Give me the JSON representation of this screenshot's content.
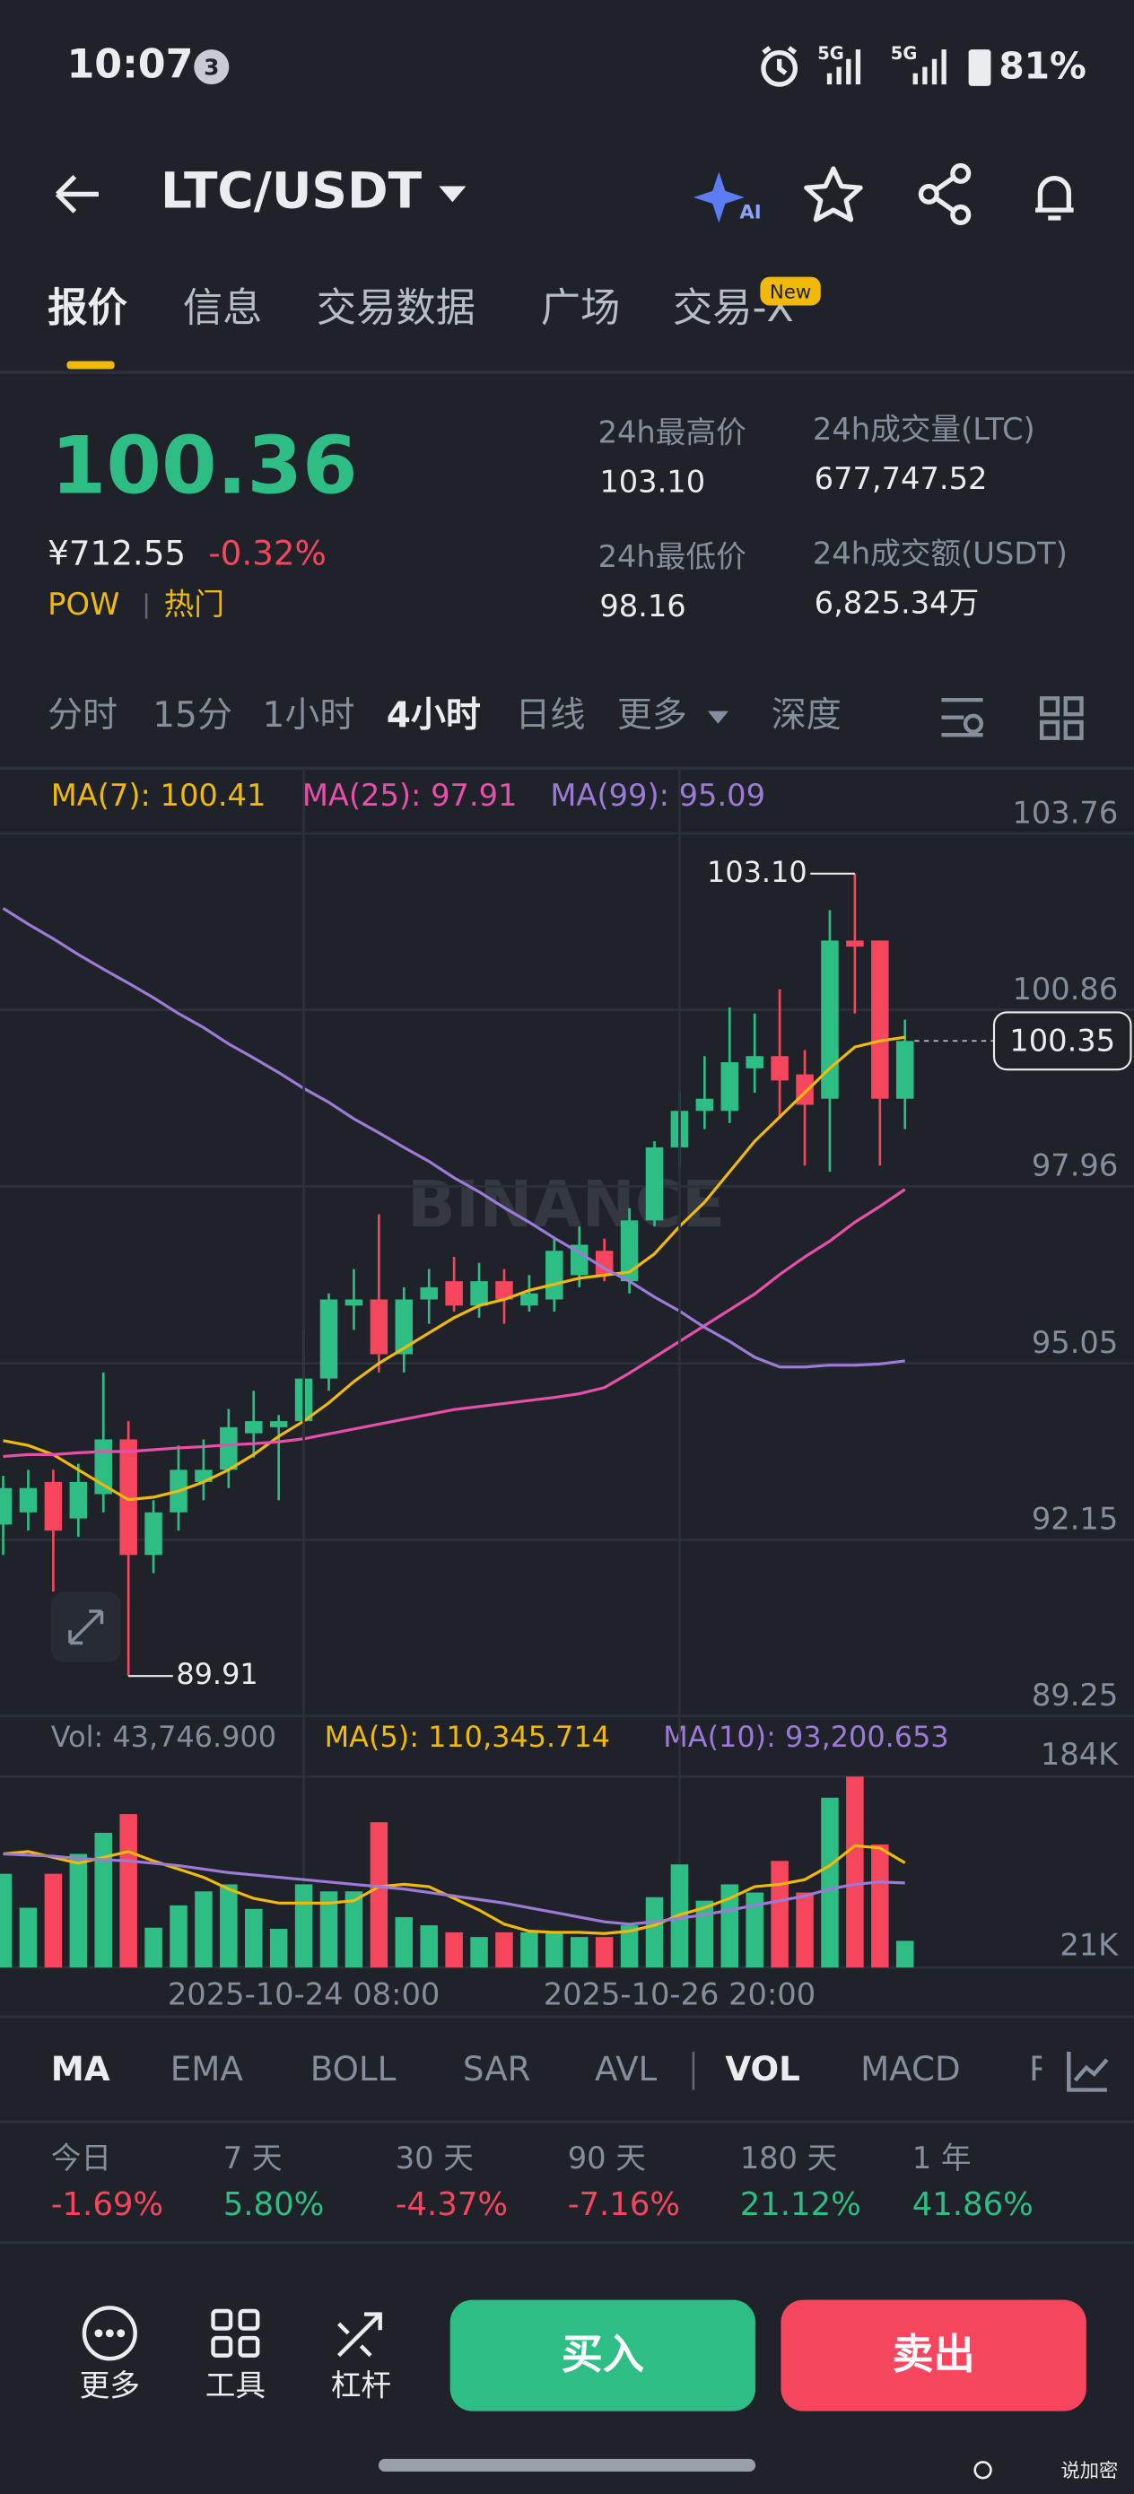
{
  "status_bar": {
    "time": "10:07",
    "notifications": "3",
    "network_1": "5G",
    "network_2": "5G",
    "battery": "81%"
  },
  "header": {
    "pair": "LTC/USDT",
    "ai_badge": "AI"
  },
  "tabs": [
    "报价",
    "信息",
    "交易数据",
    "广场",
    "交易-X"
  ],
  "new_badge": "New",
  "ticker": {
    "price": "100.36",
    "cny_price": "¥712.55",
    "change": "-0.32%",
    "tags": [
      "POW",
      "热门"
    ],
    "stats": [
      {
        "label": "24h最高价",
        "value": "103.10"
      },
      {
        "label": "24h成交量(LTC)",
        "value": "677,747.52"
      },
      {
        "label": "24h最低价",
        "value": "98.16"
      },
      {
        "label": "24h成交额(USDT)",
        "value": "6,825.34万"
      }
    ]
  },
  "intervals": [
    "分时",
    "15分",
    "1小时",
    "4小时",
    "日线",
    "更多",
    "深度"
  ],
  "watermark": "BINANCE",
  "chart_data": [
    {
      "type": "candlestick",
      "up_color": "#2ebd85",
      "down_color": "#f6465d",
      "open": [
        92.4,
        92.6,
        93.1,
        92.5,
        92.9,
        93.8,
        91.9,
        92.6,
        93.1,
        93.3,
        93.9,
        94.0,
        94.1,
        94.8,
        96.0,
        96.1,
        95.2,
        96.1,
        96.4,
        96.0,
        96.4,
        96.0,
        96.1,
        96.5,
        96.9,
        96.4,
        97.4,
        98.6,
        99.2,
        99.2,
        99.9,
        100.1,
        99.8,
        99.4,
        102.0,
        102.0,
        99.4
      ],
      "high": [
        93.2,
        93.3,
        93.3,
        93.4,
        94.9,
        94.1,
        92.8,
        93.7,
        93.8,
        94.3,
        94.6,
        94.2,
        95.6,
        96.2,
        96.6,
        97.5,
        96.3,
        96.6,
        96.8,
        96.7,
        96.6,
        96.5,
        97.1,
        97.3,
        97.1,
        97.6,
        98.7,
        99.5,
        100.1,
        100.9,
        100.8,
        101.2,
        100.2,
        102.5,
        103.1,
        102.0,
        100.7
      ],
      "low": [
        91.9,
        92.3,
        91.3,
        92.2,
        92.6,
        89.91,
        91.6,
        92.3,
        92.8,
        93.0,
        93.5,
        92.8,
        93.8,
        94.6,
        95.6,
        94.9,
        94.9,
        95.7,
        95.9,
        95.8,
        95.7,
        95.9,
        95.9,
        96.3,
        96.4,
        96.2,
        97.3,
        98.3,
        98.9,
        99.0,
        99.5,
        99.1,
        98.3,
        98.2,
        100.8,
        98.3,
        98.9
      ],
      "close": [
        93.0,
        93.0,
        92.3,
        93.1,
        93.8,
        91.9,
        92.6,
        93.3,
        93.3,
        94.0,
        94.1,
        94.1,
        94.8,
        96.1,
        96.1,
        95.2,
        96.1,
        96.3,
        96.0,
        96.4,
        96.1,
        96.2,
        96.9,
        97.0,
        96.5,
        97.4,
        98.6,
        99.2,
        99.4,
        100.0,
        100.1,
        99.7,
        99.3,
        102.0,
        101.9,
        99.4,
        100.35
      ],
      "series": [
        {
          "label": "MA(7): 100.41",
          "color": "#f0b90b",
          "values": [
            93.78,
            93.7,
            93.55,
            93.3,
            93.05,
            92.81,
            92.85,
            92.95,
            93.1,
            93.3,
            93.55,
            93.85,
            94.1,
            94.4,
            94.75,
            95.05,
            95.3,
            95.55,
            95.8,
            96.0,
            96.1,
            96.25,
            96.35,
            96.45,
            96.5,
            96.55,
            96.85,
            97.3,
            97.7,
            98.2,
            98.7,
            99.1,
            99.5,
            99.9,
            100.25,
            100.35,
            100.41
          ]
        },
        {
          "label": "MA(25): 97.91",
          "color": "#e84fab",
          "values": [
            93.52,
            93.55,
            93.55,
            93.58,
            93.6,
            93.6,
            93.63,
            93.66,
            93.68,
            93.71,
            93.73,
            93.76,
            93.81,
            93.89,
            93.97,
            94.05,
            94.13,
            94.21,
            94.29,
            94.34,
            94.39,
            94.44,
            94.49,
            94.55,
            94.65,
            94.89,
            95.15,
            95.41,
            95.67,
            95.93,
            96.19,
            96.51,
            96.8,
            97.06,
            97.37,
            97.63,
            97.91
          ]
        },
        {
          "label": "MA(99): 95.09",
          "color": "#9e7ad8",
          "values": [
            102.53,
            102.27,
            102.03,
            101.77,
            101.53,
            101.3,
            101.06,
            100.8,
            100.57,
            100.3,
            100.07,
            99.83,
            99.57,
            99.34,
            99.07,
            98.84,
            98.6,
            98.37,
            98.1,
            97.87,
            97.61,
            97.37,
            97.11,
            96.87,
            96.61,
            96.4,
            96.14,
            95.91,
            95.64,
            95.41,
            95.15,
            94.99,
            94.99,
            95.02,
            95.02,
            95.04,
            95.09
          ]
        }
      ],
      "annotations": [
        {
          "value": 103.1,
          "label": "103.10"
        },
        {
          "value": 89.91,
          "label": "89.91"
        }
      ],
      "last_price": {
        "value": 100.35,
        "label": "100.35"
      },
      "ylim": [
        89.25,
        103.76
      ],
      "yticks": [
        103.76,
        100.86,
        97.96,
        95.05,
        92.15,
        89.25
      ],
      "grid": true
    },
    {
      "type": "bar",
      "legend": [
        "Vol: 43,746.900",
        "MA(5): 110,345.714",
        "MA(10): 93,200.653"
      ],
      "categories": [
        null,
        null,
        null,
        null,
        null,
        null,
        null,
        null,
        null,
        null,
        null,
        null,
        "2025-10-24 08:00",
        null,
        null,
        null,
        null,
        null,
        null,
        null,
        null,
        null,
        null,
        null,
        null,
        null,
        null,
        "2025-10-26 20:00",
        null,
        null,
        null,
        null,
        null,
        null,
        null,
        null,
        null
      ],
      "values": [
        101000,
        72000,
        101000,
        118000,
        136000,
        152000,
        55000,
        74000,
        86000,
        92000,
        71000,
        54000,
        92000,
        86000,
        86000,
        145000,
        64000,
        57000,
        51000,
        47000,
        51000,
        51000,
        51000,
        47000,
        47000,
        57000,
        81000,
        109000,
        78000,
        92000,
        85000,
        112000,
        85000,
        166000,
        184000,
        126000,
        43746.9
      ],
      "series": [
        {
          "color": "#f0b90b",
          "values": [
            118000,
            120000,
            115000,
            110000,
            115000,
            120000,
            112000,
            105000,
            98000,
            88000,
            80000,
            76000,
            76000,
            76000,
            78000,
            90000,
            92000,
            90000,
            80000,
            70000,
            58000,
            52000,
            51000,
            51000,
            50000,
            52000,
            57000,
            66000,
            72000,
            80000,
            90000,
            92000,
            96000,
            108000,
            125000,
            123000,
            110345.714
          ]
        },
        {
          "color": "#9e7ad8",
          "values": [
            118000,
            117000,
            116000,
            114000,
            113000,
            112000,
            110000,
            108000,
            105000,
            102000,
            100000,
            98000,
            96000,
            94000,
            92000,
            90000,
            88000,
            85000,
            82000,
            79000,
            76000,
            72000,
            68000,
            64000,
            60000,
            58000,
            60000,
            63000,
            66000,
            70000,
            74000,
            78000,
            82000,
            88000,
            92000,
            94000,
            93200.653
          ]
        }
      ],
      "ylim": [
        21000,
        184000
      ],
      "yticks": [
        {
          "value": 184000,
          "label": "184K"
        },
        {
          "value": 21000,
          "label": "21K"
        }
      ],
      "grid": true
    }
  ],
  "indicators": [
    "MA",
    "EMA",
    "BOLL",
    "SAR",
    "AVL",
    "VOL",
    "MACD",
    "R"
  ],
  "performance": [
    {
      "period": "今日",
      "change": "-1.69%"
    },
    {
      "period": "7 天",
      "change": "5.80%"
    },
    {
      "period": "30 天",
      "change": "-4.37%"
    },
    {
      "period": "90 天",
      "change": "-7.16%"
    },
    {
      "period": "180 天",
      "change": "21.12%"
    },
    {
      "period": "1 年",
      "change": "41.86%"
    }
  ],
  "bottom_bar": {
    "more": "更多",
    "tools": "工具",
    "leverage": "杠杆",
    "buy": "买入",
    "sell": "卖出"
  },
  "footer_tag": "说加密"
}
